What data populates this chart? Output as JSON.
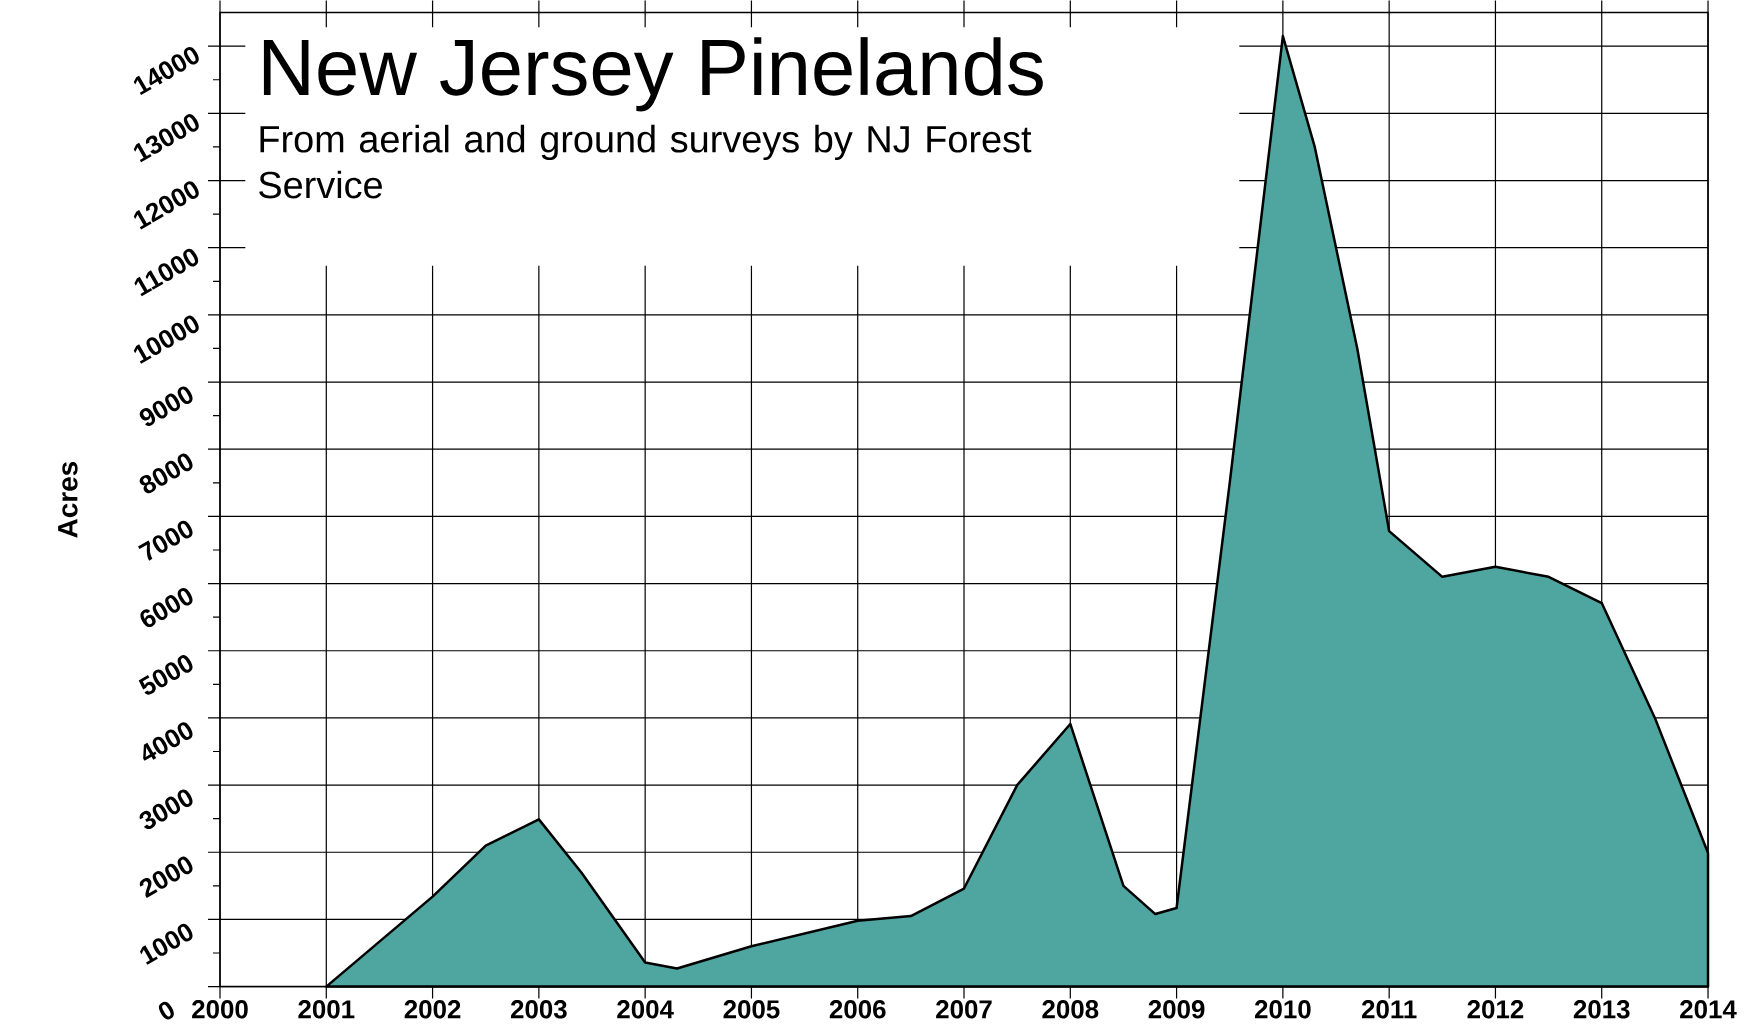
{
  "chart_data": {
    "type": "area",
    "title": "New Jersey Pinelands",
    "subtitle": "From aerial and ground surveys by NJ Forest Service",
    "ylabel": "Acres",
    "x": [
      2001,
      2002,
      2002.5,
      2003,
      2003.4,
      2004,
      2004.3,
      2005,
      2006,
      2006.5,
      2007,
      2007.5,
      2008,
      2008.5,
      2008.8,
      2009,
      2009.5,
      2010,
      2010.3,
      2010.7,
      2011,
      2011.5,
      2012,
      2012.5,
      2013,
      2013.5,
      2014
    ],
    "series": [
      {
        "color": "#4fa6a0",
        "values": [
          0,
          1340,
          2100,
          2490,
          1700,
          360,
          270,
          600,
          980,
          1050,
          1460,
          3000,
          3910,
          1500,
          1080,
          1170,
          7500,
          14150,
          12500,
          9500,
          6780,
          6100,
          6250,
          6100,
          5710,
          4000,
          1990
        ]
      }
    ],
    "xlim": [
      2000,
      2014
    ],
    "ylim": [
      0,
      14500
    ],
    "xticks": [
      2000,
      2001,
      2002,
      2003,
      2004,
      2005,
      2006,
      2007,
      2008,
      2009,
      2010,
      2011,
      2012,
      2013,
      2014
    ],
    "yticks": [
      0,
      1000,
      2000,
      3000,
      4000,
      5000,
      6000,
      7000,
      8000,
      9000,
      10000,
      11000,
      12000,
      13000,
      14000
    ],
    "grid": true
  }
}
